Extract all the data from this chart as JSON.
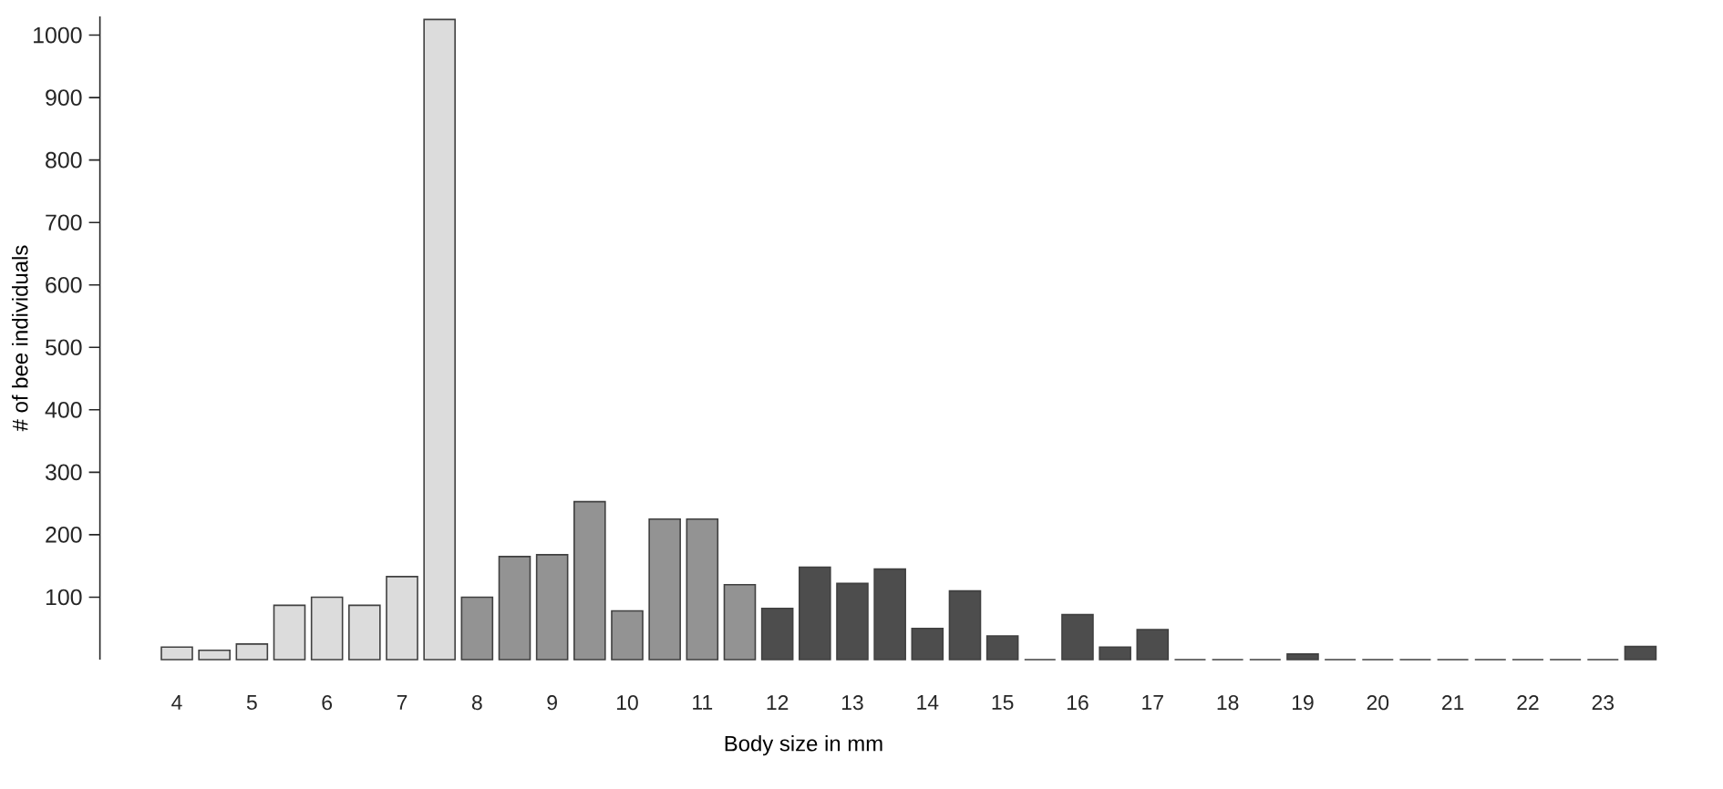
{
  "chart_data": {
    "type": "bar",
    "xlabel": "Body size in mm",
    "ylabel": "# of bee individuals",
    "categories": [
      "4",
      null,
      "5",
      null,
      "6",
      null,
      "7",
      null,
      "8",
      null,
      "9",
      null,
      "10",
      null,
      "11",
      null,
      "12",
      null,
      "13",
      null,
      "14",
      null,
      "15",
      null,
      "16",
      null,
      "17",
      null,
      "18",
      null,
      "19",
      null,
      "20",
      null,
      "21",
      null,
      "22",
      null,
      "23",
      null
    ],
    "values": [
      20,
      15,
      25,
      87,
      100,
      87,
      133,
      1025,
      100,
      165,
      168,
      253,
      78,
      225,
      225,
      120,
      82,
      148,
      122,
      145,
      50,
      110,
      38,
      0,
      72,
      20,
      48,
      0,
      0,
      0,
      9,
      0,
      0,
      0,
      0,
      0,
      0,
      0,
      0,
      21
    ],
    "colors": [
      "#dcdcdc",
      "#dcdcdc",
      "#dcdcdc",
      "#dcdcdc",
      "#dcdcdc",
      "#dcdcdc",
      "#dcdcdc",
      "#dcdcdc",
      "#939393",
      "#939393",
      "#939393",
      "#939393",
      "#939393",
      "#939393",
      "#939393",
      "#939393",
      "#4d4d4d",
      "#4d4d4d",
      "#4d4d4d",
      "#4d4d4d",
      "#4d4d4d",
      "#4d4d4d",
      "#4d4d4d",
      "#4d4d4d",
      "#4d4d4d",
      "#4d4d4d",
      "#4d4d4d",
      "#4d4d4d",
      "#4d4d4d",
      "#4d4d4d",
      "#4d4d4d",
      "#4d4d4d",
      "#4d4d4d",
      "#4d4d4d",
      "#4d4d4d",
      "#4d4d4d",
      "#4d4d4d",
      "#4d4d4d",
      "#4d4d4d",
      "#4d4d4d"
    ],
    "ylim": [
      0,
      1030
    ],
    "yticks": [
      100,
      200,
      300,
      400,
      500,
      600,
      700,
      800,
      900,
      1000
    ]
  }
}
